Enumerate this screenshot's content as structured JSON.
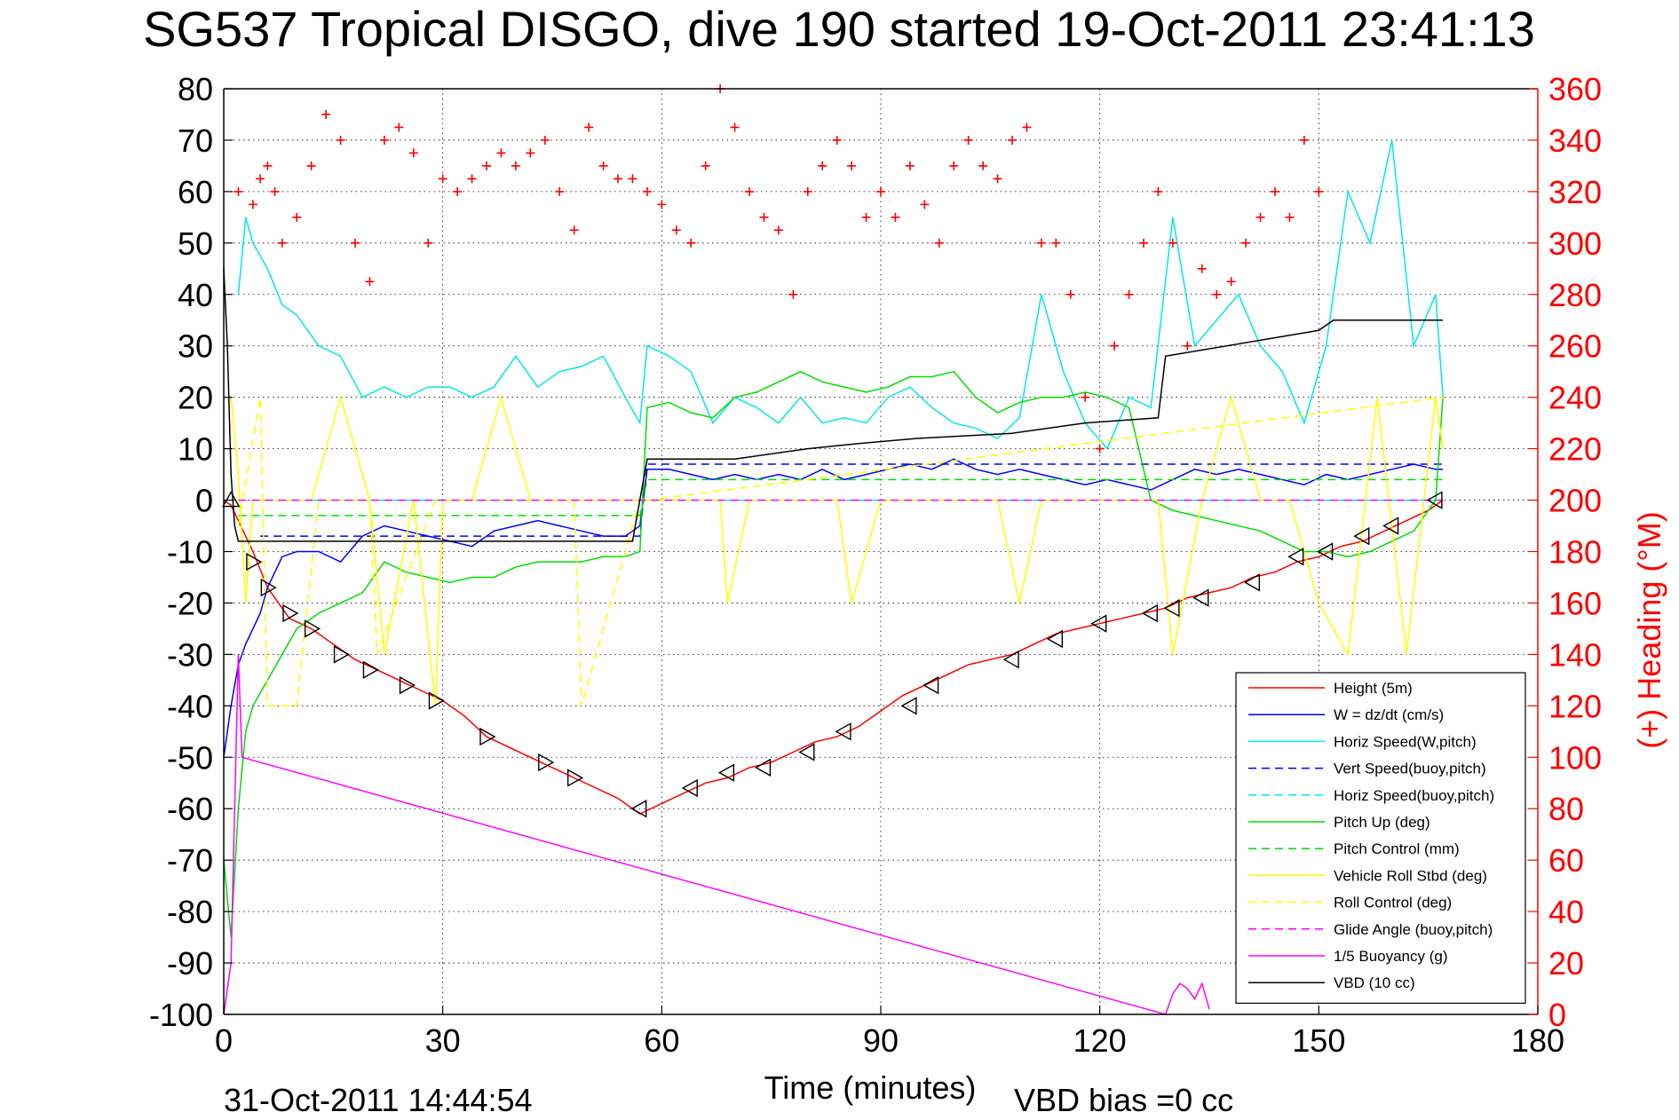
{
  "chart_data": {
    "type": "line",
    "title": "SG537 Tropical DISGO, dive 190 started 19-Oct-2011 23:41:13",
    "xlabel": "Time (minutes)",
    "ylabel": "",
    "y2label": "(+) Heading (°M)",
    "xlim": [
      0,
      180
    ],
    "ylim": [
      -100,
      80
    ],
    "y2lim": [
      0,
      360
    ],
    "xticks": [
      0,
      30,
      60,
      90,
      120,
      150,
      180
    ],
    "yticks": [
      80,
      70,
      60,
      50,
      40,
      30,
      20,
      10,
      0,
      -10,
      -20,
      -30,
      -40,
      -50,
      -60,
      -70,
      -80,
      -90,
      -100
    ],
    "y2ticks": [
      360,
      340,
      320,
      300,
      280,
      260,
      240,
      220,
      200,
      180,
      160,
      140,
      120,
      100,
      80,
      60,
      40,
      20,
      0
    ],
    "grid": true,
    "legend_position": "bottom-right",
    "footer_date": "31-Oct-2011 14:44:54",
    "footer_note": "VBD bias =0 cc",
    "colors": {
      "axis_right": "#ff0000",
      "heading": "#ff0000"
    },
    "series": [
      {
        "name": "Height (5m)",
        "color": "#ff0000",
        "style": "solid",
        "x": [
          0,
          1,
          2,
          4,
          6,
          9,
          12,
          15,
          18,
          21,
          24,
          27,
          30,
          33,
          36,
          39,
          42,
          45,
          48,
          51,
          54,
          57,
          60,
          63,
          66,
          69,
          72,
          75,
          78,
          81,
          84,
          87,
          90,
          93,
          96,
          99,
          102,
          105,
          108,
          111,
          114,
          117,
          120,
          123,
          126,
          129,
          132,
          135,
          138,
          141,
          144,
          147,
          150,
          153,
          156,
          159,
          162,
          165,
          167
        ],
        "y": [
          0,
          -1,
          -4,
          -10,
          -17,
          -23,
          -25,
          -28,
          -31,
          -33,
          -35,
          -37,
          -39,
          -42,
          -46,
          -48,
          -50,
          -52,
          -54,
          -56,
          -58,
          -61,
          -59,
          -57,
          -55,
          -54,
          -52,
          -51,
          -49,
          -47,
          -46,
          -44,
          -41,
          -38,
          -36,
          -34,
          -32,
          -31,
          -30,
          -28,
          -26,
          -25,
          -24,
          -23,
          -22,
          -21,
          -19,
          -18,
          -17,
          -15,
          -14,
          -12,
          -11,
          -9,
          -8,
          -6,
          -4,
          -2,
          0
        ]
      },
      {
        "name": "W = dz/dt (cm/s)",
        "color": "#0000ff",
        "style": "solid",
        "x": [
          0,
          1,
          2,
          3,
          4,
          5,
          6,
          7,
          8,
          10,
          13,
          16,
          19,
          22,
          25,
          28,
          31,
          34,
          37,
          40,
          43,
          46,
          49,
          52,
          55,
          57,
          58,
          61,
          64,
          67,
          70,
          73,
          76,
          79,
          82,
          85,
          88,
          91,
          94,
          97,
          100,
          103,
          106,
          109,
          112,
          115,
          118,
          121,
          124,
          127,
          130,
          133,
          136,
          139,
          142,
          145,
          148,
          151,
          154,
          157,
          160,
          163,
          166,
          167
        ],
        "y": [
          -50,
          -40,
          -32,
          -28,
          -25,
          -22,
          -17,
          -14,
          -11,
          -10,
          -10,
          -12,
          -7,
          -5,
          -6,
          -7,
          -8,
          -9,
          -6,
          -5,
          -4,
          -5,
          -6,
          -7,
          -7,
          -5,
          6,
          6,
          5,
          4,
          5,
          4,
          5,
          4,
          6,
          4,
          5,
          6,
          7,
          6,
          8,
          6,
          5,
          6,
          5,
          4,
          3,
          4,
          3,
          2,
          4,
          6,
          5,
          6,
          5,
          4,
          3,
          5,
          4,
          5,
          6,
          7,
          6,
          6
        ]
      },
      {
        "name": "Horiz Speed(W,pitch)",
        "color": "#00e8e8",
        "style": "solid",
        "x": [
          2,
          3,
          4,
          6,
          8,
          10,
          13,
          16,
          19,
          22,
          25,
          28,
          31,
          34,
          37,
          40,
          43,
          46,
          49,
          52,
          55,
          57,
          58,
          61,
          64,
          67,
          70,
          73,
          76,
          79,
          82,
          85,
          88,
          91,
          94,
          97,
          100,
          103,
          106,
          109,
          112,
          115,
          118,
          121,
          124,
          127,
          130,
          133,
          136,
          139,
          142,
          145,
          148,
          151,
          154,
          157,
          160,
          163,
          166,
          167
        ],
        "y": [
          40,
          55,
          50,
          45,
          38,
          36,
          30,
          28,
          20,
          22,
          20,
          22,
          22,
          20,
          22,
          28,
          22,
          25,
          26,
          28,
          20,
          15,
          30,
          28,
          25,
          15,
          20,
          18,
          15,
          20,
          15,
          16,
          15,
          20,
          22,
          18,
          15,
          14,
          12,
          16,
          40,
          25,
          15,
          10,
          20,
          18,
          55,
          30,
          35,
          40,
          30,
          25,
          15,
          30,
          60,
          50,
          70,
          30,
          40,
          20
        ]
      },
      {
        "name": "Vert Speed(buoy,pitch)",
        "color": "#0000ff",
        "style": "dashed",
        "x": [
          5,
          57,
          58,
          167
        ],
        "y": [
          -7,
          -7,
          7,
          7
        ]
      },
      {
        "name": "Horiz Speed(buoy,pitch)",
        "color": "#00e8e8",
        "style": "dashed",
        "x": [
          5,
          57,
          58,
          167
        ],
        "y": [
          0,
          0,
          0,
          0
        ]
      },
      {
        "name": "Pitch Up (deg)",
        "color": "#00dd00",
        "style": "solid",
        "x": [
          0,
          1,
          2,
          3,
          4,
          6,
          8,
          10,
          13,
          16,
          19,
          22,
          25,
          28,
          31,
          34,
          37,
          40,
          43,
          46,
          49,
          52,
          55,
          57,
          58,
          61,
          64,
          67,
          70,
          73,
          76,
          79,
          82,
          85,
          88,
          91,
          94,
          97,
          100,
          103,
          106,
          109,
          112,
          115,
          118,
          121,
          124,
          127,
          130,
          133,
          136,
          139,
          142,
          145,
          148,
          151,
          154,
          157,
          160,
          163,
          166,
          167
        ],
        "y": [
          -70,
          -85,
          -60,
          -45,
          -40,
          -35,
          -30,
          -25,
          -22,
          -20,
          -18,
          -12,
          -14,
          -15,
          -16,
          -15,
          -15,
          -13,
          -12,
          -12,
          -12,
          -11,
          -11,
          -10,
          18,
          19,
          17,
          16,
          20,
          21,
          23,
          25,
          23,
          22,
          21,
          22,
          24,
          24,
          25,
          20,
          17,
          19,
          20,
          20,
          21,
          20,
          18,
          0,
          -2,
          -3,
          -4,
          -5,
          -6,
          -8,
          -10,
          -10,
          -11,
          -10,
          -8,
          -6,
          0,
          20
        ]
      },
      {
        "name": "Pitch Control (mm)",
        "color": "#00dd00",
        "style": "dashed",
        "x": [
          2,
          57,
          58,
          167
        ],
        "y": [
          -3,
          -3,
          4,
          4
        ]
      },
      {
        "name": "Vehicle Roll Stbd (deg)",
        "color": "#ffff00",
        "style": "solid",
        "x": [
          1,
          2,
          3,
          4,
          8,
          12,
          16,
          20,
          22,
          26,
          29,
          30,
          34,
          38,
          42,
          46,
          50,
          54,
          57,
          60,
          64,
          68,
          69,
          72,
          76,
          80,
          84,
          86,
          90,
          94,
          98,
          102,
          106,
          109,
          112,
          116,
          120,
          124,
          128,
          130,
          134,
          138,
          142,
          146,
          150,
          154,
          158,
          162,
          166,
          167
        ],
        "y": [
          20,
          5,
          -20,
          0,
          0,
          0,
          20,
          0,
          -30,
          0,
          -40,
          0,
          0,
          20,
          0,
          0,
          0,
          0,
          0,
          0,
          0,
          0,
          -20,
          0,
          0,
          0,
          0,
          -20,
          0,
          0,
          0,
          0,
          0,
          -20,
          0,
          0,
          0,
          0,
          0,
          -30,
          0,
          20,
          0,
          0,
          -20,
          -30,
          20,
          -30,
          20,
          10
        ]
      },
      {
        "name": "Roll Control (deg)",
        "color": "#ffff00",
        "style": "dashed",
        "x": [
          2,
          5,
          6,
          10,
          13,
          20,
          21,
          29,
          30,
          48,
          49,
          57,
          58,
          167
        ],
        "y": [
          -5,
          20,
          -40,
          -40,
          0,
          0,
          -30,
          0,
          0,
          0,
          -40,
          0,
          0,
          20
        ]
      },
      {
        "name": "Glide Angle (buoy,pitch)",
        "color": "#ff00ff",
        "style": "dashed",
        "x": [
          2,
          57,
          58,
          167
        ],
        "y": [
          0,
          0,
          0,
          0
        ]
      },
      {
        "name": "1/5 Buoyancy (g)",
        "color": "#ff00ff",
        "style": "solid",
        "x": [
          0,
          1,
          1.5,
          2,
          2.5,
          129,
          130,
          131,
          132,
          133,
          134,
          135
        ],
        "y": [
          -100,
          -90,
          -60,
          -30,
          -50,
          -100,
          -96,
          -94,
          -95,
          -97,
          -94,
          -99
        ]
      },
      {
        "name": "VBD (10 cc)",
        "color": "#000000",
        "style": "solid",
        "x": [
          0,
          0.5,
          1,
          1.5,
          2,
          4,
          20,
          30,
          56,
          58,
          70,
          80,
          87,
          95,
          108,
          118,
          128,
          129,
          150,
          152,
          160,
          167
        ],
        "y": [
          45,
          30,
          5,
          -5,
          -8,
          -8,
          -8,
          -8,
          -8,
          8,
          8,
          10,
          11,
          12,
          13,
          15,
          16,
          28,
          33,
          35,
          35,
          35
        ]
      },
      {
        "name": "Heading",
        "color": "#ff0000",
        "style": "plus",
        "axis": "right",
        "x": [
          2,
          4,
          5,
          6,
          7,
          8,
          10,
          12,
          14,
          16,
          18,
          20,
          22,
          24,
          26,
          28,
          30,
          32,
          34,
          36,
          38,
          40,
          42,
          44,
          46,
          48,
          50,
          52,
          54,
          56,
          58,
          60,
          62,
          64,
          66,
          68,
          70,
          72,
          74,
          76,
          78,
          80,
          82,
          84,
          86,
          88,
          90,
          92,
          94,
          96,
          98,
          100,
          102,
          104,
          106,
          108,
          110,
          112,
          114,
          116,
          118,
          120,
          122,
          124,
          126,
          128,
          130,
          132,
          134,
          136,
          138,
          140,
          142,
          144,
          146,
          148,
          150
        ],
        "y": [
          320,
          315,
          325,
          330,
          320,
          300,
          310,
          330,
          350,
          340,
          300,
          285,
          340,
          345,
          335,
          300,
          325,
          320,
          325,
          330,
          335,
          330,
          335,
          340,
          320,
          305,
          345,
          330,
          325,
          325,
          320,
          315,
          305,
          300,
          330,
          360,
          345,
          320,
          310,
          305,
          280,
          320,
          330,
          340,
          330,
          310,
          320,
          310,
          330,
          315,
          300,
          330,
          340,
          330,
          325,
          340,
          345,
          300,
          300,
          280,
          240,
          220,
          260,
          280,
          300,
          320,
          300,
          260,
          290,
          280,
          285,
          300,
          310,
          320,
          310,
          340,
          320
        ]
      }
    ],
    "markers": {
      "name": "triangles",
      "color": "#000000",
      "x": [
        1,
        4,
        6,
        9,
        12,
        16,
        20,
        25,
        29,
        36,
        44,
        48,
        57,
        64,
        69,
        74,
        80,
        85,
        94,
        97,
        108,
        114,
        120,
        127,
        130,
        134,
        141,
        147,
        151,
        156,
        160,
        166
      ],
      "y": [
        0,
        -12,
        -17,
        -22,
        -25,
        -30,
        -33,
        -36,
        -39,
        -46,
        -51,
        -54,
        -60,
        -56,
        -53,
        -52,
        -49,
        -45,
        -40,
        -36,
        -31,
        -27,
        -24,
        -22,
        -21,
        -19,
        -16,
        -11,
        -10,
        -7,
        -5,
        0
      ]
    }
  }
}
